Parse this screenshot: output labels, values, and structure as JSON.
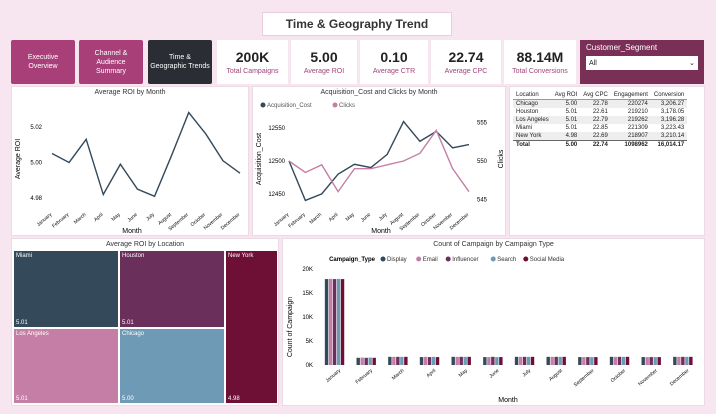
{
  "header": {
    "title": "Time & Geography Trend"
  },
  "nav": [
    {
      "label": "Executive Overview"
    },
    {
      "label": "Channel & Audience Summary"
    },
    {
      "label": "Time & Geographic Trends"
    }
  ],
  "kpis": [
    {
      "value": "200K",
      "label": "Total Campaigns"
    },
    {
      "value": "5.00",
      "label": "Average ROI"
    },
    {
      "value": "0.10",
      "label": "Average CTR"
    },
    {
      "value": "22.74",
      "label": "Average CPC"
    },
    {
      "value": "88.14M",
      "label": "Total Conversions"
    }
  ],
  "segment": {
    "label": "Customer_Segment",
    "value": "All"
  },
  "roi_chart": {
    "title": "Average ROI by Month",
    "xlabel": "Month",
    "ylabel": "Average ROI"
  },
  "acq_chart": {
    "title": "Acquisition_Cost and Clicks by Month",
    "xlabel": "Month",
    "ylabel": "Acquisition_Cost",
    "y2label": "Clicks"
  },
  "table": {
    "columns": [
      "Location",
      "Avg ROI",
      "Avg CPC",
      "Engagement",
      "Conversion"
    ],
    "rows": [
      [
        "Chicago",
        "5.00",
        "22.78",
        "220274",
        "3,206.27"
      ],
      [
        "Houston",
        "5.01",
        "22.61",
        "219210",
        "3,178.05"
      ],
      [
        "Los Angeles",
        "5.01",
        "22.79",
        "219262",
        "3,196.28"
      ],
      [
        "Miami",
        "5.01",
        "22.85",
        "221309",
        "3,223.43"
      ],
      [
        "New York",
        "4.98",
        "22.69",
        "218907",
        "3,210.14"
      ]
    ],
    "total": [
      "Total",
      "5.00",
      "22.74",
      "1098962",
      "16,014.17"
    ]
  },
  "treemap": {
    "title": "Average ROI by Location",
    "cells": [
      {
        "name": "Miami",
        "value": "5.01",
        "color": "#34495a"
      },
      {
        "name": "Houston",
        "value": "5.01",
        "color": "#6b2f5b"
      },
      {
        "name": "Los Angeles",
        "value": "5.01",
        "color": "#c57fa6"
      },
      {
        "name": "Chicago",
        "value": "5.00",
        "color": "#6f9ab5"
      },
      {
        "name": "New York",
        "value": "4.98",
        "color": "#6e0f36"
      }
    ]
  },
  "bar_title": "Count of Campaign by Campaign Type",
  "legend_title": "Campaign_Type",
  "chart_data": [
    {
      "type": "line",
      "title": "Average ROI by Month",
      "xlabel": "Month",
      "ylabel": "Average ROI",
      "categories": [
        "January",
        "February",
        "March",
        "April",
        "May",
        "June",
        "July",
        "August",
        "September",
        "October",
        "November",
        "December"
      ],
      "values": [
        5.005,
        5.0,
        5.013,
        4.982,
        4.999,
        4.985,
        4.981,
        5.004,
        5.028,
        5.016,
        5.001,
        4.994
      ],
      "ylim": [
        4.975,
        5.03
      ],
      "yticks": [
        4.98,
        5.0,
        5.02
      ]
    },
    {
      "type": "line",
      "title": "Acquisition_Cost and Clicks by Month",
      "xlabel": "Month",
      "ylabel": "Acquisition_Cost",
      "y2label": "Clicks",
      "categories": [
        "January",
        "February",
        "March",
        "April",
        "May",
        "June",
        "July",
        "August",
        "September",
        "October",
        "November",
        "December"
      ],
      "series": [
        {
          "name": "Acquisition_Cost",
          "color": "#34495a",
          "values": [
            12500,
            12440,
            12450,
            12480,
            12495,
            12490,
            12510,
            12560,
            12530,
            12545,
            12520,
            12525
          ]
        },
        {
          "name": "Clicks",
          "color": "#c57fa6",
          "values": [
            550,
            548.5,
            549.5,
            546,
            549,
            549,
            549.5,
            550,
            551,
            554,
            549,
            546
          ]
        }
      ],
      "ylim": [
        12430,
        12570
      ],
      "yticks": [
        12450,
        12500,
        12550
      ],
      "y2lim": [
        544,
        556
      ],
      "y2ticks": [
        545,
        550,
        555
      ]
    },
    {
      "type": "bar",
      "title": "Count of Campaign by Campaign Type",
      "xlabel": "Month",
      "ylabel": "Count of Campaign",
      "categories": [
        "January",
        "February",
        "March",
        "April",
        "May",
        "June",
        "July",
        "August",
        "September",
        "October",
        "November",
        "December"
      ],
      "series": [
        {
          "name": "Display",
          "color": "#34495a",
          "values": [
            17900,
            1500,
            1700,
            1650,
            1700,
            1650,
            1700,
            1700,
            1650,
            1700,
            1650,
            1700
          ]
        },
        {
          "name": "Email",
          "color": "#c57fa6",
          "values": [
            17950,
            1550,
            1700,
            1700,
            1700,
            1650,
            1700,
            1700,
            1650,
            1700,
            1650,
            1700
          ]
        },
        {
          "name": "Influencer",
          "color": "#6b2f5b",
          "values": [
            17900,
            1500,
            1700,
            1650,
            1700,
            1700,
            1700,
            1700,
            1650,
            1700,
            1650,
            1700
          ]
        },
        {
          "name": "Search",
          "color": "#6f9ab5",
          "values": [
            17950,
            1550,
            1700,
            1700,
            1700,
            1650,
            1700,
            1700,
            1650,
            1700,
            1650,
            1700
          ]
        },
        {
          "name": "Social Media",
          "color": "#6e0f36",
          "values": [
            17900,
            1500,
            1700,
            1650,
            1700,
            1650,
            1700,
            1700,
            1650,
            1700,
            1650,
            1700
          ]
        }
      ],
      "ylim": [
        0,
        20000
      ],
      "yticks": [
        0,
        5000,
        10000,
        15000,
        20000
      ],
      "ytick_labels": [
        "0K",
        "5K",
        "10K",
        "15K",
        "20K"
      ]
    }
  ]
}
